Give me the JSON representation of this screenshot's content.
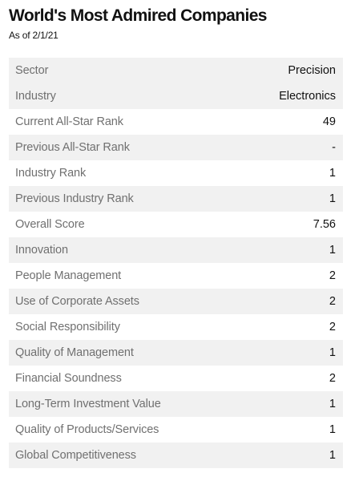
{
  "header": {
    "title": "World's Most Admired Companies",
    "subtitle": "As of 2/1/21"
  },
  "rows": [
    {
      "label": "Sector",
      "value": "Precision"
    },
    {
      "label": "Industry",
      "value": "Electronics"
    },
    {
      "label": "Current All-Star Rank",
      "value": "49"
    },
    {
      "label": "Previous All-Star Rank",
      "value": "-"
    },
    {
      "label": "Industry Rank",
      "value": "1"
    },
    {
      "label": "Previous Industry Rank",
      "value": "1"
    },
    {
      "label": "Overall Score",
      "value": "7.56"
    },
    {
      "label": "Innovation",
      "value": "1"
    },
    {
      "label": "People Management",
      "value": "2"
    },
    {
      "label": "Use of Corporate Assets",
      "value": "2"
    },
    {
      "label": "Social Responsibility",
      "value": "2"
    },
    {
      "label": "Quality of Management",
      "value": "1"
    },
    {
      "label": "Financial Soundness",
      "value": "2"
    },
    {
      "label": "Long-Term Investment Value",
      "value": "1"
    },
    {
      "label": "Quality of Products/Services",
      "value": "1"
    },
    {
      "label": "Global Competitiveness",
      "value": "1"
    }
  ],
  "colors": {
    "row_shade": "#f1f1f1",
    "label_text": "#707070",
    "value_text": "#111111"
  }
}
